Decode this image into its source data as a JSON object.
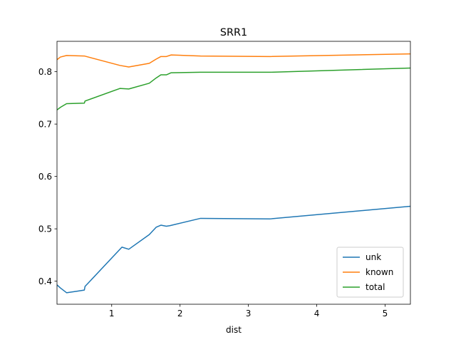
{
  "chart_data": {
    "type": "line",
    "title": "SRR1",
    "xlabel": "dist",
    "ylabel": "",
    "xlim": [
      0.2,
      5.37
    ],
    "ylim": [
      0.356,
      0.858
    ],
    "xticks": [
      1,
      2,
      3,
      4,
      5
    ],
    "xtick_labels": [
      "1",
      "2",
      "3",
      "4",
      "5"
    ],
    "yticks": [
      0.4,
      0.5,
      0.6,
      0.7,
      0.8
    ],
    "ytick_labels": [
      "0.4",
      "0.5",
      "0.6",
      "0.7",
      "0.8"
    ],
    "grid": false,
    "legend_position": "lower-right",
    "series": [
      {
        "name": "unk",
        "color": "#1f77b4",
        "points": [
          [
            0.2,
            0.393
          ],
          [
            0.25,
            0.387
          ],
          [
            0.34,
            0.378
          ],
          [
            0.5,
            0.381
          ],
          [
            0.6,
            0.383
          ],
          [
            0.61,
            0.39
          ],
          [
            1.15,
            0.465
          ],
          [
            1.25,
            0.461
          ],
          [
            1.55,
            0.489
          ],
          [
            1.65,
            0.503
          ],
          [
            1.72,
            0.507
          ],
          [
            1.8,
            0.505
          ],
          [
            1.85,
            0.506
          ],
          [
            2.3,
            0.52
          ],
          [
            3.32,
            0.519
          ],
          [
            5.37,
            0.543
          ]
        ]
      },
      {
        "name": "known",
        "color": "#ff7f0e",
        "points": [
          [
            0.2,
            0.823
          ],
          [
            0.25,
            0.828
          ],
          [
            0.34,
            0.831
          ],
          [
            0.6,
            0.83
          ],
          [
            1.12,
            0.812
          ],
          [
            1.25,
            0.809
          ],
          [
            1.55,
            0.816
          ],
          [
            1.65,
            0.824
          ],
          [
            1.72,
            0.829
          ],
          [
            1.8,
            0.829
          ],
          [
            1.87,
            0.832
          ],
          [
            2.3,
            0.83
          ],
          [
            3.32,
            0.829
          ],
          [
            5.37,
            0.834
          ]
        ]
      },
      {
        "name": "total",
        "color": "#2ca02c",
        "points": [
          [
            0.2,
            0.727
          ],
          [
            0.25,
            0.732
          ],
          [
            0.34,
            0.739
          ],
          [
            0.6,
            0.74
          ],
          [
            0.61,
            0.744
          ],
          [
            1.12,
            0.768
          ],
          [
            1.25,
            0.767
          ],
          [
            1.55,
            0.778
          ],
          [
            1.65,
            0.788
          ],
          [
            1.72,
            0.794
          ],
          [
            1.8,
            0.794
          ],
          [
            1.87,
            0.798
          ],
          [
            2.3,
            0.799
          ],
          [
            3.32,
            0.799
          ],
          [
            5.37,
            0.807
          ]
        ]
      }
    ]
  }
}
